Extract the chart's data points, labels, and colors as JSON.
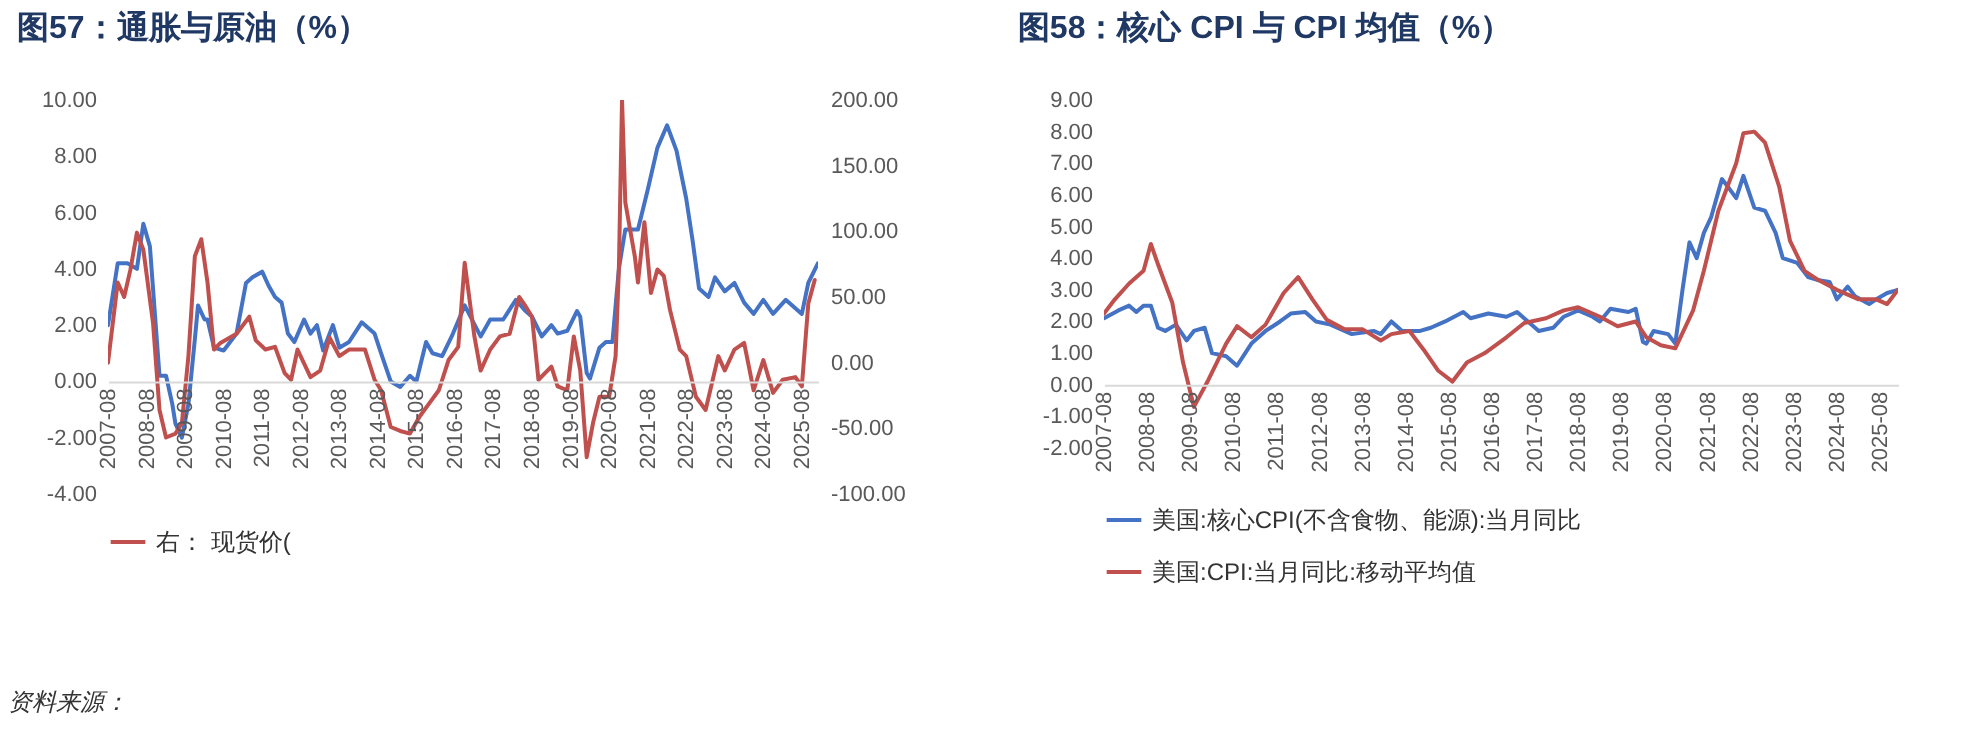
{
  "chart_data": [
    {
      "type": "line",
      "title": "图57：通胀与原油（%）",
      "xlim": [
        "2007-08",
        "2026-01"
      ],
      "xticks": [
        "2007-08",
        "2008-08",
        "2009-08",
        "2010-08",
        "2011-08",
        "2012-08",
        "2013-08",
        "2014-08",
        "2015-08",
        "2016-08",
        "2017-08",
        "2018-08",
        "2019-08",
        "2020-08",
        "2021-08",
        "2022-08",
        "2023-08",
        "2024-08",
        "2025-08"
      ],
      "ylim": [
        -4,
        10
      ],
      "yticks": [
        {
          "value": -4,
          "label": "-4.00"
        },
        {
          "value": -2,
          "label": "-2.00"
        },
        {
          "value": 0,
          "label": "0.00"
        },
        {
          "value": 2,
          "label": "2.00"
        },
        {
          "value": 4,
          "label": "4.00"
        },
        {
          "value": 6,
          "label": "6.00"
        },
        {
          "value": 8,
          "label": "8.00"
        },
        {
          "value": 10,
          "label": "10.00"
        }
      ],
      "y2lim": [
        -100,
        200
      ],
      "y2ticks": [
        {
          "value": -100,
          "label": "-100.00"
        },
        {
          "value": -50,
          "label": "-50.00"
        },
        {
          "value": 0,
          "label": "0.00"
        },
        {
          "value": 50,
          "label": "50.00"
        },
        {
          "value": 100,
          "label": "100.00"
        },
        {
          "value": 150,
          "label": "150.00"
        },
        {
          "value": 200,
          "label": "200.00"
        }
      ],
      "legend": "bottom",
      "annotations": [
        "资料来源："
      ],
      "series": [
        {
          "color": "#4472c4",
          "x": [
            "2007-08",
            "2007-11",
            "2008-02",
            "2008-05",
            "2008-07",
            "2008-09",
            "2008-12",
            "2009-02",
            "2009-04",
            "2009-05",
            "2009-07",
            "2009-09",
            "2009-11",
            "2009-12",
            "2010-02",
            "2010-03",
            "2010-05",
            "2010-08",
            "2010-12",
            "2011-03",
            "2011-05",
            "2011-08",
            "2011-10",
            "2011-12",
            "2012-02",
            "2012-04",
            "2012-06",
            "2012-09",
            "2012-11",
            "2013-01",
            "2013-03",
            "2013-06",
            "2013-08",
            "2013-11",
            "2014-03",
            "2014-07",
            "2014-09",
            "2014-12",
            "2015-03",
            "2015-06",
            "2015-08",
            "2015-11",
            "2016-01",
            "2016-04",
            "2016-07",
            "2016-11",
            "2017-04",
            "2017-07",
            "2017-11",
            "2018-03",
            "2018-06",
            "2018-08",
            "2018-11",
            "2019-02",
            "2019-04",
            "2019-07",
            "2019-10",
            "2019-11",
            "2020-01",
            "2020-02",
            "2020-05",
            "2020-07",
            "2020-09",
            "2020-11",
            "2021-01",
            "2021-05",
            "2021-08",
            "2021-11",
            "2022-02",
            "2022-05",
            "2022-08",
            "2022-10",
            "2022-12",
            "2023-03",
            "2023-05",
            "2023-08",
            "2023-11",
            "2024-02",
            "2024-05",
            "2024-08",
            "2024-11",
            "2025-03",
            "2025-08",
            "2025-10",
            "2026-01"
          ],
          "values": [
            2.0,
            4.2,
            4.2,
            4.0,
            5.6,
            4.8,
            0.2,
            0.2,
            -0.8,
            -1.5,
            -2.0,
            -0.8,
            1.5,
            2.7,
            2.2,
            2.2,
            1.2,
            1.1,
            1.7,
            3.5,
            3.7,
            3.9,
            3.4,
            3.0,
            2.8,
            1.7,
            1.4,
            2.2,
            1.7,
            2.0,
            1.1,
            2.0,
            1.2,
            1.4,
            2.1,
            1.7,
            1.0,
            0.0,
            -0.2,
            0.2,
            0.0,
            1.4,
            1.0,
            0.9,
            1.6,
            2.7,
            1.6,
            2.2,
            2.2,
            2.9,
            2.5,
            2.3,
            1.6,
            2.0,
            1.7,
            1.8,
            2.5,
            2.3,
            0.3,
            0.1,
            1.2,
            1.4,
            1.4,
            4.0,
            5.4,
            5.4,
            6.8,
            8.3,
            9.1,
            8.2,
            6.5,
            5.0,
            3.3,
            3.0,
            3.7,
            3.2,
            3.5,
            2.8,
            2.4,
            2.9,
            2.4,
            2.9,
            2.4,
            3.5,
            4.2
          ]
        },
        {
          "name": "右： 现货价(",
          "color": "#c0504d",
          "axis": "y2",
          "x": [
            "2007-08",
            "2007-11",
            "2008-01",
            "2008-03",
            "2008-05",
            "2008-07",
            "2008-10",
            "2008-12",
            "2009-02",
            "2009-05",
            "2009-07",
            "2009-09",
            "2009-11",
            "2010-01",
            "2010-03",
            "2010-05",
            "2010-07",
            "2010-12",
            "2011-04",
            "2011-06",
            "2011-09",
            "2011-12",
            "2012-03",
            "2012-05",
            "2012-07",
            "2012-11",
            "2013-02",
            "2013-05",
            "2013-08",
            "2013-11",
            "2014-04",
            "2014-07",
            "2014-09",
            "2014-12",
            "2015-03",
            "2015-06",
            "2015-09",
            "2015-12",
            "2016-03",
            "2016-06",
            "2016-09",
            "2016-11",
            "2017-02",
            "2017-04",
            "2017-07",
            "2017-10",
            "2018-01",
            "2018-04",
            "2018-06",
            "2018-08",
            "2018-10",
            "2019-02",
            "2019-04",
            "2019-07",
            "2019-09",
            "2019-11",
            "2020-01",
            "2020-03",
            "2020-05",
            "2020-08",
            "2020-10",
            "2020-11",
            "2020-12",
            "2021-01",
            "2021-04",
            "2021-05",
            "2021-07",
            "2021-09",
            "2021-11",
            "2022-01",
            "2022-03",
            "2022-06",
            "2022-08",
            "2022-11",
            "2023-02",
            "2023-06",
            "2023-08",
            "2023-11",
            "2024-02",
            "2024-05",
            "2024-08",
            "2024-11",
            "2025-02",
            "2025-06",
            "2025-08",
            "2025-10",
            "2025-12"
          ],
          "values": [
            0,
            61,
            50,
            71,
            99,
            86,
            30,
            -36,
            -57,
            -54,
            -46,
            5,
            81,
            94,
            61,
            10,
            15,
            22,
            35,
            17,
            10,
            12,
            -8,
            -13,
            10,
            -11,
            -6,
            19,
            5,
            10,
            10,
            -13,
            -21,
            -49,
            -52,
            -54,
            -41,
            -31,
            -21,
            2,
            12,
            76,
            20,
            -6,
            10,
            20,
            22,
            50,
            43,
            35,
            -13,
            -3,
            -18,
            -21,
            20,
            -6,
            -72,
            -46,
            -26,
            -26,
            5,
            71,
            200,
            122,
            81,
            61,
            107,
            53,
            71,
            66,
            40,
            10,
            5,
            -26,
            -36,
            5,
            -6,
            10,
            15,
            -21,
            2,
            -23,
            -13,
            -11,
            -18,
            45,
            63
          ]
        }
      ]
    },
    {
      "type": "line",
      "title": "图58：核心 CPI 与 CPI 均值（%）",
      "xlim": [
        "2007-08",
        "2026-01"
      ],
      "xticks": [
        "2007-08",
        "2008-08",
        "2009-08",
        "2010-08",
        "2011-08",
        "2012-08",
        "2013-08",
        "2014-08",
        "2015-08",
        "2016-08",
        "2017-08",
        "2018-08",
        "2019-08",
        "2020-08",
        "2021-08",
        "2022-08",
        "2023-08",
        "2024-08",
        "2025-08"
      ],
      "ylim": [
        -2,
        9
      ],
      "yticks": [
        {
          "value": -2,
          "label": "-2.00"
        },
        {
          "value": -1,
          "label": "-1.00"
        },
        {
          "value": 0,
          "label": "0.00"
        },
        {
          "value": 1,
          "label": "1.00"
        },
        {
          "value": 2,
          "label": "2.00"
        },
        {
          "value": 3,
          "label": "3.00"
        },
        {
          "value": 4,
          "label": "4.00"
        },
        {
          "value": 5,
          "label": "5.00"
        },
        {
          "value": 6,
          "label": "6.00"
        },
        {
          "value": 7,
          "label": "7.00"
        },
        {
          "value": 8,
          "label": "8.00"
        },
        {
          "value": 9,
          "label": "9.00"
        }
      ],
      "legend": "bottom",
      "series": [
        {
          "name": "美国:核心CPI(不含食物、能源):当月同比",
          "color": "#4472c4",
          "x": [
            "2007-08",
            "2007-12",
            "2008-03",
            "2008-05",
            "2008-07",
            "2008-09",
            "2008-11",
            "2009-01",
            "2009-04",
            "2009-07",
            "2009-09",
            "2009-12",
            "2010-02",
            "2010-06",
            "2010-09",
            "2011-01",
            "2011-05",
            "2011-09",
            "2011-12",
            "2012-04",
            "2012-07",
            "2012-11",
            "2013-05",
            "2013-11",
            "2014-01",
            "2014-04",
            "2014-07",
            "2014-12",
            "2015-03",
            "2015-07",
            "2015-12",
            "2016-02",
            "2016-07",
            "2016-12",
            "2017-03",
            "2017-06",
            "2017-09",
            "2018-01",
            "2018-04",
            "2018-08",
            "2018-12",
            "2019-02",
            "2019-05",
            "2019-10",
            "2019-12",
            "2020-02",
            "2020-03",
            "2020-05",
            "2020-09",
            "2020-11",
            "2021-01",
            "2021-03",
            "2021-05",
            "2021-07",
            "2021-09",
            "2021-12",
            "2022-02",
            "2022-04",
            "2022-06",
            "2022-09",
            "2022-12",
            "2023-03",
            "2023-05",
            "2023-09",
            "2023-12",
            "2024-03",
            "2024-06",
            "2024-08",
            "2024-11",
            "2025-01",
            "2025-05",
            "2025-07",
            "2025-10",
            "2026-01"
          ],
          "values": [
            2.1,
            2.35,
            2.5,
            2.3,
            2.5,
            2.5,
            1.8,
            1.7,
            1.9,
            1.4,
            1.7,
            1.8,
            1.0,
            0.9,
            0.6,
            1.3,
            1.7,
            2.0,
            2.25,
            2.3,
            2.0,
            1.9,
            1.6,
            1.7,
            1.6,
            2.0,
            1.7,
            1.7,
            1.8,
            2.0,
            2.3,
            2.1,
            2.25,
            2.15,
            2.3,
            2.0,
            1.7,
            1.8,
            2.15,
            2.35,
            2.15,
            2.0,
            2.4,
            2.3,
            2.4,
            1.35,
            1.3,
            1.7,
            1.6,
            1.3,
            3.0,
            4.5,
            4.0,
            4.8,
            5.3,
            6.5,
            6.2,
            5.9,
            6.6,
            5.6,
            5.5,
            4.8,
            4.0,
            3.85,
            3.4,
            3.3,
            3.25,
            2.7,
            3.1,
            2.8,
            2.55,
            2.7,
            2.9,
            3.0
          ]
        },
        {
          "name": "美国:CPI:当月同比:移动平均值",
          "color": "#c0504d",
          "x": [
            "2007-08",
            "2007-11",
            "2008-03",
            "2008-07",
            "2008-09",
            "2008-11",
            "2009-03",
            "2009-06",
            "2009-09",
            "2010-01",
            "2010-06",
            "2010-09",
            "2011-01",
            "2011-05",
            "2011-10",
            "2012-02",
            "2012-06",
            "2012-10",
            "2013-03",
            "2013-08",
            "2014-01",
            "2014-04",
            "2014-09",
            "2015-01",
            "2015-05",
            "2015-09",
            "2016-01",
            "2016-06",
            "2016-12",
            "2017-05",
            "2017-11",
            "2018-04",
            "2018-08",
            "2019-02",
            "2019-07",
            "2019-12",
            "2020-03",
            "2020-07",
            "2020-11",
            "2021-04",
            "2021-07",
            "2021-11",
            "2022-04",
            "2022-06",
            "2022-09",
            "2022-12",
            "2023-04",
            "2023-07",
            "2023-11",
            "2024-03",
            "2024-08",
            "2025-02",
            "2025-07",
            "2025-10",
            "2026-01"
          ],
          "values": [
            2.25,
            2.7,
            3.2,
            3.6,
            4.45,
            3.8,
            2.6,
            0.7,
            -0.7,
            0.15,
            1.3,
            1.85,
            1.5,
            1.9,
            2.9,
            3.4,
            2.7,
            2.05,
            1.75,
            1.75,
            1.4,
            1.6,
            1.7,
            1.1,
            0.45,
            0.1,
            0.7,
            1.0,
            1.5,
            1.95,
            2.1,
            2.35,
            2.45,
            2.15,
            1.85,
            2.0,
            1.5,
            1.25,
            1.15,
            2.35,
            3.6,
            5.5,
            7.0,
            7.95,
            8.0,
            7.65,
            6.25,
            4.55,
            3.6,
            3.3,
            3.0,
            2.7,
            2.7,
            2.55,
            3.0
          ]
        }
      ]
    }
  ]
}
